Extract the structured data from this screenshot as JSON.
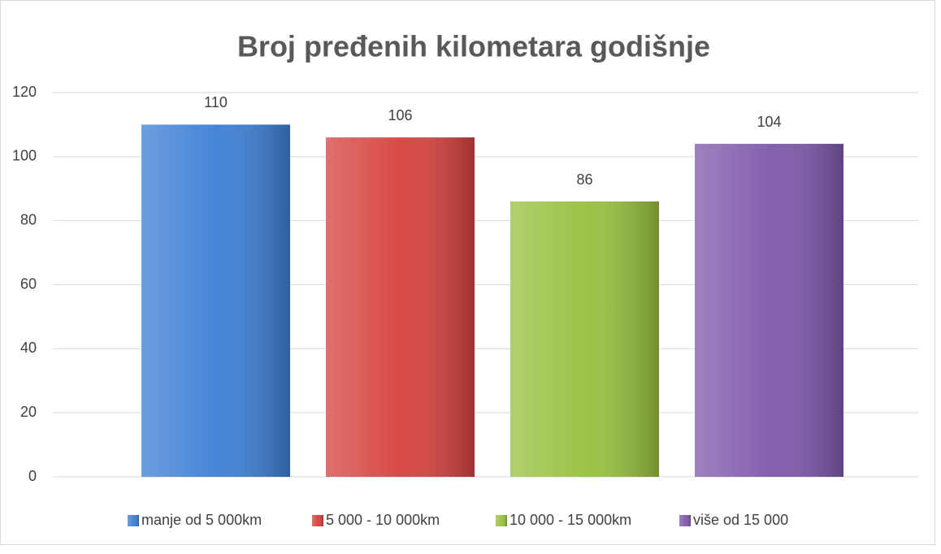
{
  "chart_data": {
    "type": "bar",
    "title": "Broj pređenih kilometara godišnje",
    "series": [
      {
        "name": "manje od 5 000km",
        "color": "#3d7ed4",
        "values": [
          110
        ]
      },
      {
        "name": "5 000 - 10 000km",
        "color": "#d5413e",
        "values": [
          106
        ]
      },
      {
        "name": "10 000 - 15 000km",
        "color": "#96c03e",
        "values": [
          86
        ]
      },
      {
        "name": "više od 15 000",
        "color": "#7e58ab",
        "values": [
          104
        ]
      }
    ],
    "ylim": [
      0,
      120
    ],
    "yticks": [
      0,
      20,
      40,
      60,
      80,
      100,
      120
    ],
    "grid": true,
    "legend": "bottom"
  }
}
